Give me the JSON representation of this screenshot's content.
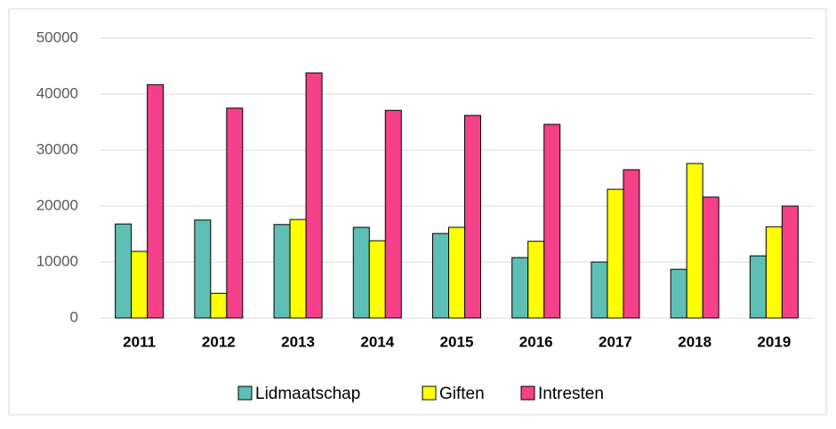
{
  "chart_data": {
    "type": "bar",
    "categories": [
      "2011",
      "2012",
      "2013",
      "2014",
      "2015",
      "2016",
      "2017",
      "2018",
      "2019"
    ],
    "series": [
      {
        "name": "Lidmaatschap",
        "color": "#5ebfb5",
        "values": [
          16800,
          17500,
          16700,
          16200,
          15100,
          10800,
          10000,
          8700,
          11100
        ]
      },
      {
        "name": "Giften",
        "color": "#ffff00",
        "values": [
          11900,
          4400,
          17600,
          13800,
          16200,
          13700,
          23000,
          27600,
          16300
        ]
      },
      {
        "name": "Intresten",
        "color": "#f5408a",
        "values": [
          41700,
          37500,
          43800,
          37100,
          36200,
          34600,
          26500,
          21600,
          20000
        ]
      }
    ],
    "ylim": [
      0,
      50000
    ],
    "yticks": [
      0,
      10000,
      20000,
      30000,
      40000,
      50000
    ],
    "grid": true,
    "legend": "bottom"
  }
}
